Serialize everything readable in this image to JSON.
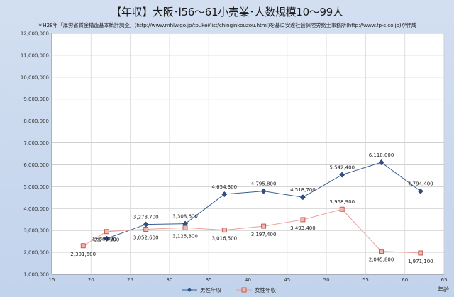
{
  "chart_data": {
    "type": "line",
    "title": "【年収】大阪･l56～61小売業･人数規模10～99人",
    "subtitle": "＊H28年「厚労省賃金構造基本統計調査」(http://www.mhlw.go.jp/toukei/list/chinginkouzou.html)を基に安達社会保険労務士事務所(http://www.fp-s.co.jp)が作成",
    "xlabel": "年齢",
    "ylabel": "",
    "xlim": [
      15,
      65
    ],
    "ylim": [
      1000000,
      12000000
    ],
    "x_ticks": [
      "15",
      "20",
      "25",
      "30",
      "35",
      "40",
      "45",
      "50",
      "55",
      "60",
      "65"
    ],
    "y_ticks": [
      "1,000,000",
      "2,000,000",
      "3,000,000",
      "4,000,000",
      "5,000,000",
      "6,000,000",
      "7,000,000",
      "8,000,000",
      "9,000,000",
      "10,000,000",
      "11,000,000",
      "12,000,000"
    ],
    "grid": true,
    "legend": "bottom",
    "series": [
      {
        "name": "男性年収",
        "color": "#3a5f95",
        "marker": "diamond",
        "x": [
          22,
          27,
          32,
          37,
          42,
          47,
          52,
          57,
          62
        ],
        "values": [
          2630000,
          3278700,
          3308600,
          4654300,
          4795800,
          4518700,
          5542400,
          6110000,
          4794400
        ],
        "labels": [
          "2,630,000",
          "3,278,700",
          "3,308,600",
          "4,654,300",
          "4,795,800",
          "4,518,700",
          "5,542,400",
          "6,110,000",
          "4,794,400"
        ]
      },
      {
        "name": "女性年収",
        "color": "#e8a09a",
        "marker": "square",
        "x": [
          19,
          22,
          27,
          32,
          37,
          42,
          47,
          52,
          57,
          62
        ],
        "values": [
          2301600,
          2949300,
          3052600,
          3125800,
          3016500,
          3197400,
          3493400,
          3968900,
          2045800,
          1971100
        ],
        "labels": [
          "2,301,600",
          "2,949,300",
          "3,052,600",
          "3,125,800",
          "3,016,500",
          "3,197,400",
          "3,493,400",
          "3,968,900",
          "2,045,800",
          "1,971,100"
        ]
      }
    ]
  }
}
